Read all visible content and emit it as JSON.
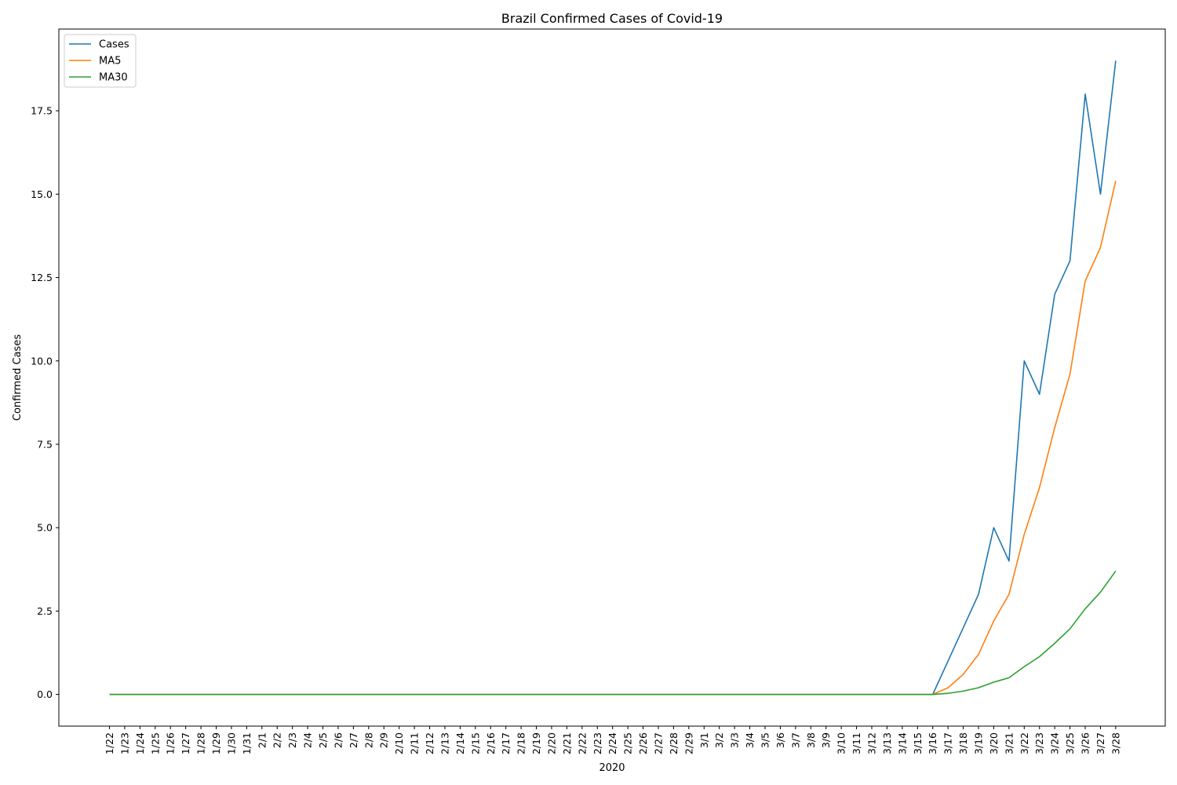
{
  "chart_data": {
    "type": "line",
    "title": "Brazil Confirmed Cases of Covid-19",
    "xlabel": "2020",
    "ylabel": "Confirmed Cases",
    "ylim": [
      -0.95,
      19.95
    ],
    "yticks": [
      0.0,
      2.5,
      5.0,
      7.5,
      10.0,
      12.5,
      15.0,
      17.5
    ],
    "ytick_labels": [
      "0.0",
      "2.5",
      "5.0",
      "7.5",
      "10.0",
      "12.5",
      "15.0",
      "17.5"
    ],
    "grid": false,
    "legend_position": "top-left",
    "categories": [
      "1/22",
      "1/23",
      "1/24",
      "1/25",
      "1/26",
      "1/27",
      "1/28",
      "1/29",
      "1/30",
      "1/31",
      "2/1",
      "2/2",
      "2/3",
      "2/4",
      "2/5",
      "2/6",
      "2/7",
      "2/8",
      "2/9",
      "2/10",
      "2/11",
      "2/12",
      "2/13",
      "2/14",
      "2/15",
      "2/16",
      "2/17",
      "2/18",
      "2/19",
      "2/20",
      "2/21",
      "2/22",
      "2/23",
      "2/24",
      "2/25",
      "2/26",
      "2/27",
      "2/28",
      "2/29",
      "3/1",
      "3/2",
      "3/3",
      "3/4",
      "3/5",
      "3/6",
      "3/7",
      "3/8",
      "3/9",
      "3/10",
      "3/11",
      "3/12",
      "3/13",
      "3/14",
      "3/15",
      "3/16",
      "3/17",
      "3/18",
      "3/19",
      "3/20",
      "3/21",
      "3/22",
      "3/23",
      "3/24",
      "3/25",
      "3/26",
      "3/27",
      "3/28"
    ],
    "series": [
      {
        "name": "Cases",
        "color": "#1f77b4",
        "values": [
          0,
          0,
          0,
          0,
          0,
          0,
          0,
          0,
          0,
          0,
          0,
          0,
          0,
          0,
          0,
          0,
          0,
          0,
          0,
          0,
          0,
          0,
          0,
          0,
          0,
          0,
          0,
          0,
          0,
          0,
          0,
          0,
          0,
          0,
          0,
          0,
          0,
          0,
          0,
          0,
          0,
          0,
          0,
          0,
          0,
          0,
          0,
          0,
          0,
          0,
          0,
          0,
          0,
          0,
          0,
          1,
          2,
          3,
          5,
          4,
          10,
          9,
          12,
          13,
          18,
          15,
          19
        ]
      },
      {
        "name": "MA5",
        "color": "#ff7f0e",
        "values": [
          0,
          0,
          0,
          0,
          0,
          0,
          0,
          0,
          0,
          0,
          0,
          0,
          0,
          0,
          0,
          0,
          0,
          0,
          0,
          0,
          0,
          0,
          0,
          0,
          0,
          0,
          0,
          0,
          0,
          0,
          0,
          0,
          0,
          0,
          0,
          0,
          0,
          0,
          0,
          0,
          0,
          0,
          0,
          0,
          0,
          0,
          0,
          0,
          0,
          0,
          0,
          0,
          0,
          0,
          0,
          0.2,
          0.6,
          1.2,
          2.2,
          3.0,
          4.8,
          6.2,
          8.0,
          9.6,
          12.4,
          13.4,
          15.4
        ]
      },
      {
        "name": "MA30",
        "color": "#2ca02c",
        "values": [
          0,
          0,
          0,
          0,
          0,
          0,
          0,
          0,
          0,
          0,
          0,
          0,
          0,
          0,
          0,
          0,
          0,
          0,
          0,
          0,
          0,
          0,
          0,
          0,
          0,
          0,
          0,
          0,
          0,
          0,
          0,
          0,
          0,
          0,
          0,
          0,
          0,
          0,
          0,
          0,
          0,
          0,
          0,
          0,
          0,
          0,
          0,
          0,
          0,
          0,
          0,
          0,
          0,
          0,
          0,
          0.033,
          0.1,
          0.2,
          0.367,
          0.5,
          0.833,
          1.133,
          1.533,
          1.967,
          2.567,
          3.067,
          3.7
        ]
      }
    ]
  }
}
